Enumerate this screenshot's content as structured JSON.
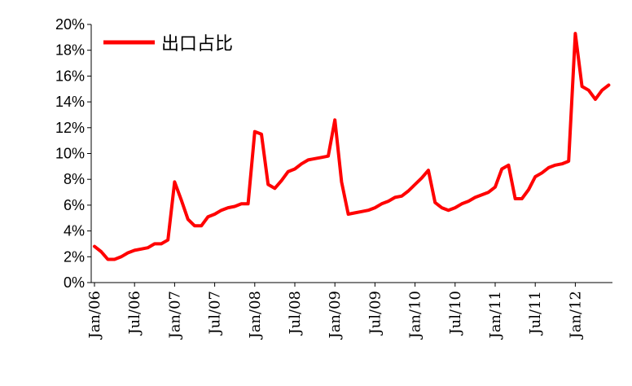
{
  "chart_data": {
    "type": "line",
    "title": "",
    "xlabel": "",
    "ylabel": "",
    "ylim": [
      0,
      20
    ],
    "y_ticks": [
      "0%",
      "2%",
      "4%",
      "6%",
      "8%",
      "10%",
      "12%",
      "14%",
      "16%",
      "18%",
      "20%"
    ],
    "x_ticks": [
      "Jan/06",
      "Jul/06",
      "Jan/07",
      "Jul/07",
      "Jan/08",
      "Jul/08",
      "Jan/09",
      "Jul/09",
      "Jan/10",
      "Jul/10",
      "Jan/11",
      "Jul/11",
      "Jan/12"
    ],
    "grid": false,
    "legend_position": "top-left",
    "x_start": "2006-01",
    "series": [
      {
        "name": "出口占比",
        "color": "#ff0000",
        "values": [
          2.8,
          2.4,
          1.8,
          1.8,
          2.0,
          2.3,
          2.5,
          2.6,
          2.7,
          3.0,
          3.0,
          3.3,
          7.8,
          6.4,
          4.9,
          4.4,
          4.4,
          5.1,
          5.3,
          5.6,
          5.8,
          5.9,
          6.1,
          6.1,
          11.7,
          11.5,
          7.6,
          7.3,
          7.9,
          8.6,
          8.8,
          9.2,
          9.5,
          9.6,
          9.7,
          9.8,
          12.6,
          7.8,
          5.3,
          5.4,
          5.5,
          5.6,
          5.8,
          6.1,
          6.3,
          6.6,
          6.7,
          7.1,
          7.6,
          8.1,
          8.7,
          6.2,
          5.8,
          5.6,
          5.8,
          6.1,
          6.3,
          6.6,
          6.8,
          7.0,
          7.4,
          8.8,
          9.1,
          6.5,
          6.5,
          7.2,
          8.2,
          8.5,
          8.9,
          9.1,
          9.2,
          9.4,
          19.3,
          15.2,
          14.9,
          14.2,
          14.9,
          15.3
        ]
      }
    ]
  }
}
